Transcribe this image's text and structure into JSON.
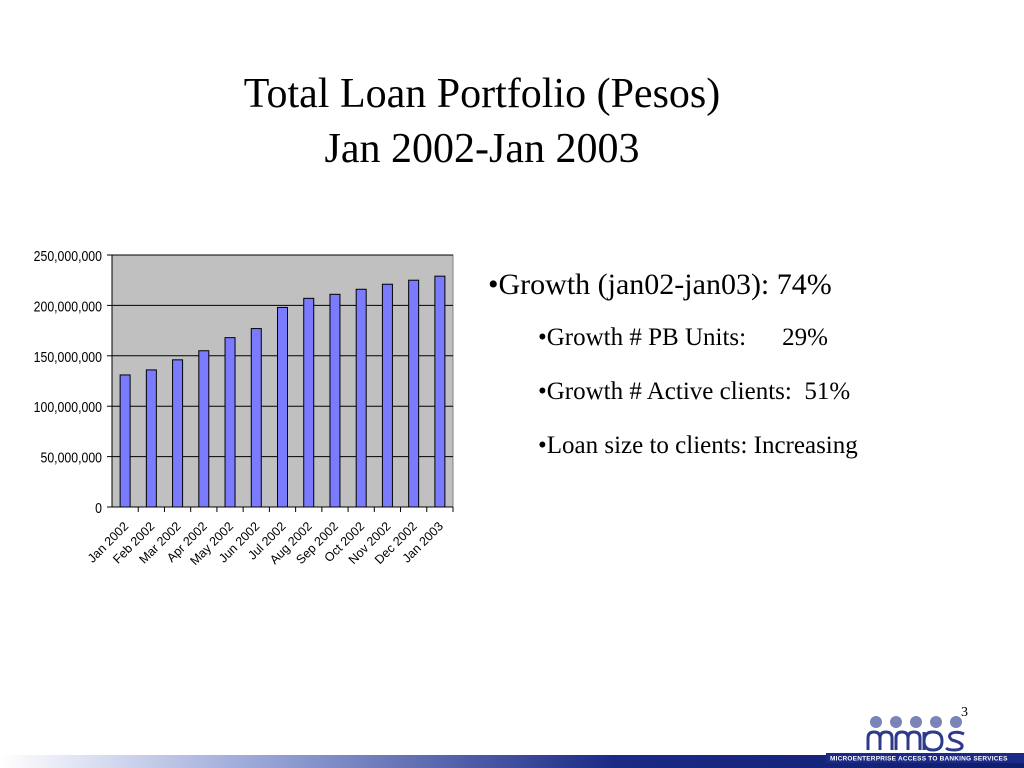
{
  "slide": {
    "title_line1": "Total Loan Portfolio  (Pesos)",
    "title_line2": "Jan 2002-Jan 2003",
    "page_number": "3"
  },
  "bullets": {
    "main": "•Growth (jan02-jan03):  74%",
    "sub": [
      {
        "label": "•Growth # PB Units:",
        "value": "29%"
      },
      {
        "label": "•Growth # Active clients:",
        "value": "51%"
      },
      {
        "label": "•Loan size to clients: Increasing",
        "value": ""
      }
    ]
  },
  "logo": {
    "letters": "mabs",
    "tagline": "MICROENTERPRISE ACCESS TO BANKING SERVICES",
    "colors": {
      "dots": "#7b84b8",
      "letters": "#2d3a8c"
    }
  },
  "colors": {
    "bar": "#7b7bff",
    "plot_bg": "#c0c0c0",
    "footer": "#1b2a86"
  },
  "chart_data": {
    "type": "bar",
    "categories": [
      "Jan 2002",
      "Feb 2002",
      "Mar 2002",
      "Apr 2002",
      "May 2002",
      "Jun 2002",
      "Jul 2002",
      "Aug 2002",
      "Sep 2002",
      "Oct 2002",
      "Nov 2002",
      "Dec 2002",
      "Jan 2003"
    ],
    "values": [
      131000000,
      136000000,
      146000000,
      155000000,
      168000000,
      177000000,
      198000000,
      207000000,
      211000000,
      216000000,
      221000000,
      225000000,
      229000000
    ],
    "ylim": [
      0,
      250000000
    ],
    "yticks": [
      "0",
      "50,000,000",
      "100,000,000",
      "150,000,000",
      "200,000,000",
      "250,000,000"
    ],
    "grid": true,
    "legend": "none",
    "title": "",
    "xlabel": "",
    "ylabel": ""
  }
}
